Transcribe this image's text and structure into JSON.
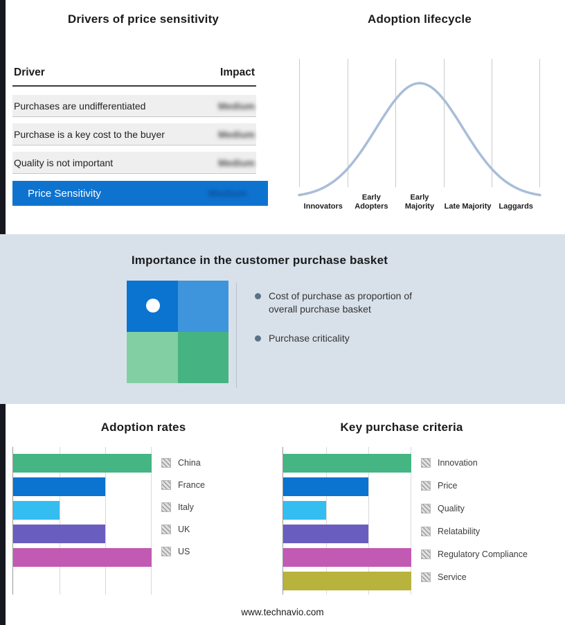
{
  "footer": {
    "url": "www.technavio.com"
  },
  "drivers_panel": {
    "title": "Drivers of price sensitivity",
    "columns": {
      "driver": "Driver",
      "impact": "Impact"
    },
    "rows": [
      {
        "driver": "Purchases are undifferentiated",
        "impact": "Medium"
      },
      {
        "driver": "Purchase is a key cost to the buyer",
        "impact": "Medium"
      },
      {
        "driver": "Quality is not important",
        "impact": "Medium"
      }
    ],
    "summary": {
      "label": "Price Sensitivity",
      "impact": "Medium"
    },
    "highlight_color": "#0e73cf"
  },
  "basket_panel": {
    "title": "Importance in the customer purchase basket",
    "bullets": [
      "Cost of purchase as proportion of overall purchase basket",
      "Purchase criticality"
    ],
    "quadrant_colors": [
      "#0b73d0",
      "#3e95dc",
      "#82cfa4",
      "#46b383"
    ],
    "background": "#d8e1ea"
  },
  "chart_data": [
    {
      "type": "line",
      "title": "Adoption lifecycle",
      "categories": [
        "Innovators",
        "Early Adopters",
        "Early Majority",
        "Late Majority",
        "Laggards"
      ],
      "values": [
        0.03,
        0.55,
        1.0,
        0.55,
        0.03
      ],
      "curve": "bell",
      "line_color": "#a9bdd7",
      "grid": true
    },
    {
      "type": "bar",
      "title": "Adoption rates",
      "orientation": "horizontal",
      "categories": [
        "China",
        "France",
        "Italy",
        "UK",
        "US"
      ],
      "values": [
        3,
        2,
        1,
        2,
        3
      ],
      "xlim": [
        0,
        3
      ],
      "grid": true,
      "colors": [
        "#45b584",
        "#0b73d0",
        "#34bdf1",
        "#6a5dc0",
        "#c25ab3"
      ],
      "legend_position": "right"
    },
    {
      "type": "bar",
      "title": "Key purchase criteria",
      "orientation": "horizontal",
      "categories": [
        "Innovation",
        "Price",
        "Quality",
        "Relatability",
        "Regulatory Compliance",
        "Service"
      ],
      "values": [
        3,
        2,
        1,
        2,
        3,
        3
      ],
      "xlim": [
        0,
        3
      ],
      "grid": true,
      "colors": [
        "#45b584",
        "#0b73d0",
        "#34bdf1",
        "#6a5dc0",
        "#c25ab3",
        "#b7b33d"
      ],
      "legend_position": "right"
    }
  ]
}
